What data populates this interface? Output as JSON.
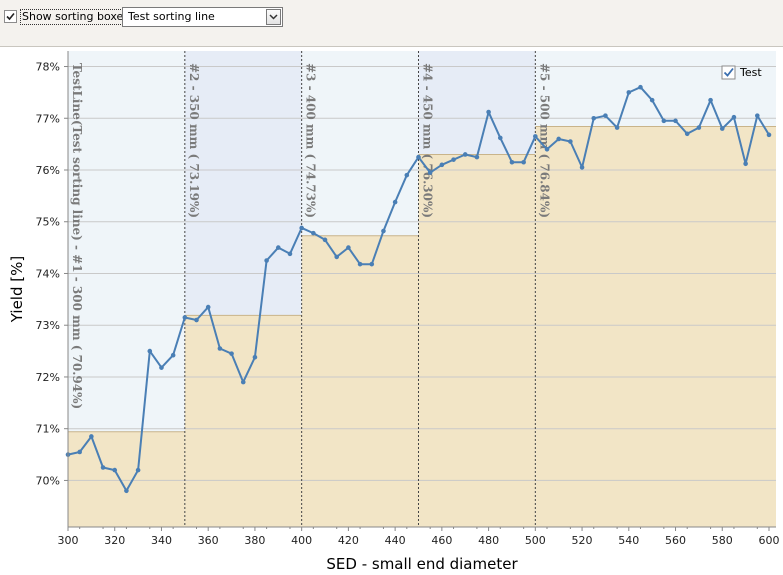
{
  "toolbar": {
    "show_sorting_boxes_label": "Show sorting boxes",
    "show_sorting_boxes_checked": true,
    "sorting_line_select_value": "Test sorting line"
  },
  "colors": {
    "plot_bg": "#eef6f9",
    "box_fill_light": "#eff5f9",
    "box_fill_shaded": "#e6ecf6",
    "step_fill": "#f2e5c6",
    "step_stroke": "#c9b48a",
    "line": "#4a7fb5",
    "grid": "#c9c9c9",
    "divider": "#444444"
  },
  "chart_data": {
    "type": "line",
    "xlabel": "SED - small end diameter",
    "ylabel": "Yield [%]",
    "xlim": [
      300,
      603
    ],
    "ylim": [
      69.1,
      78.3
    ],
    "x_ticks": [
      300,
      320,
      340,
      360,
      380,
      400,
      420,
      440,
      460,
      480,
      500,
      520,
      540,
      560,
      580,
      600
    ],
    "y_ticks": [
      70,
      71,
      72,
      73,
      74,
      75,
      76,
      77,
      78
    ],
    "y_tick_labels": [
      "70%",
      "71%",
      "72%",
      "73%",
      "74%",
      "75%",
      "76%",
      "77%",
      "78%"
    ],
    "grid": "horizontal",
    "legend": {
      "placement": "top-right",
      "entries": [
        "Test"
      ]
    },
    "sorting_boxes": [
      {
        "from": 300,
        "to": 350,
        "yield": 70.94,
        "label": "TestLine(Test sorting line) - #1 - 300 mm ( 70.94%)",
        "shaded": false
      },
      {
        "from": 350,
        "to": 400,
        "yield": 73.19,
        "label": "#2 - 350 mm ( 73.19%)",
        "shaded": true
      },
      {
        "from": 400,
        "to": 450,
        "yield": 74.73,
        "label": "#3 - 400 mm ( 74.73%)",
        "shaded": false
      },
      {
        "from": 450,
        "to": 500,
        "yield": 76.3,
        "label": "#4 - 450 mm ( 76.30%)",
        "shaded": true
      },
      {
        "from": 500,
        "to": 603,
        "yield": 76.84,
        "label": "#5 - 500 mm ( 76.84%)",
        "shaded": false
      }
    ],
    "series": [
      {
        "name": "Test",
        "x": [
          300,
          305,
          310,
          315,
          320,
          325,
          330,
          335,
          340,
          345,
          350,
          355,
          360,
          365,
          370,
          375,
          380,
          385,
          390,
          395,
          400,
          405,
          410,
          415,
          420,
          425,
          430,
          435,
          440,
          445,
          450,
          455,
          460,
          465,
          470,
          475,
          480,
          485,
          490,
          495,
          500,
          505,
          510,
          515,
          520,
          525,
          530,
          535,
          540,
          545,
          550,
          555,
          560,
          565,
          570,
          575,
          580,
          585,
          590,
          595,
          600
        ],
        "y": [
          70.5,
          70.55,
          70.85,
          70.25,
          70.2,
          69.8,
          70.2,
          72.5,
          72.18,
          72.42,
          73.15,
          73.1,
          73.35,
          72.55,
          72.45,
          71.9,
          72.38,
          74.25,
          74.5,
          74.38,
          74.88,
          74.78,
          74.65,
          74.32,
          74.5,
          74.18,
          74.18,
          74.82,
          75.38,
          75.9,
          76.25,
          75.95,
          76.1,
          76.2,
          76.3,
          76.25,
          77.12,
          76.62,
          76.15,
          76.15,
          76.65,
          76.4,
          76.6,
          76.55,
          76.05,
          77.0,
          77.05,
          76.82,
          77.5,
          77.6,
          77.35,
          76.95,
          76.95,
          76.7,
          76.82,
          77.35,
          76.8,
          77.02,
          76.12,
          77.05,
          76.68
        ]
      }
    ]
  }
}
